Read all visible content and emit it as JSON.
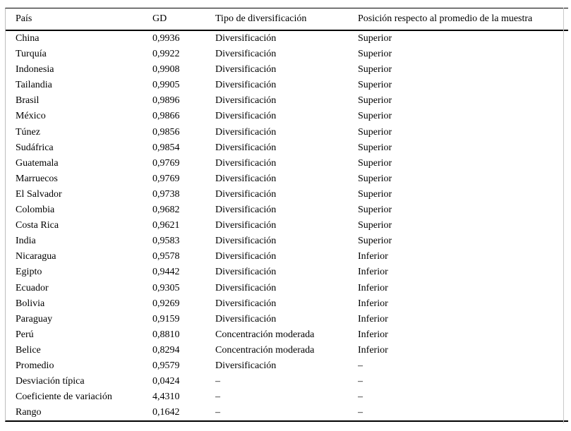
{
  "table": {
    "headers": {
      "country": "País",
      "gd": "GD",
      "type": "Tipo de diversificación",
      "position": "Posición respecto al promedio de la muestra"
    },
    "rows": [
      {
        "country": "China",
        "gd": "0,9936",
        "type": "Diversificación",
        "position": "Superior"
      },
      {
        "country": "Turquía",
        "gd": "0,9922",
        "type": "Diversificación",
        "position": "Superior"
      },
      {
        "country": "Indonesia",
        "gd": "0,9908",
        "type": "Diversificación",
        "position": "Superior"
      },
      {
        "country": "Tailandia",
        "gd": "0,9905",
        "type": "Diversificación",
        "position": "Superior"
      },
      {
        "country": "Brasil",
        "gd": "0,9896",
        "type": "Diversificación",
        "position": "Superior"
      },
      {
        "country": "México",
        "gd": "0,9866",
        "type": "Diversificación",
        "position": "Superior"
      },
      {
        "country": "Túnez",
        "gd": "0,9856",
        "type": "Diversificación",
        "position": "Superior"
      },
      {
        "country": "Sudáfrica",
        "gd": "0,9854",
        "type": "Diversificación",
        "position": "Superior"
      },
      {
        "country": "Guatemala",
        "gd": "0,9769",
        "type": "Diversificación",
        "position": "Superior"
      },
      {
        "country": "Marruecos",
        "gd": "0,9769",
        "type": "Diversificación",
        "position": "Superior"
      },
      {
        "country": "El Salvador",
        "gd": "0,9738",
        "type": "Diversificación",
        "position": "Superior"
      },
      {
        "country": "Colombia",
        "gd": "0,9682",
        "type": "Diversificación",
        "position": "Superior"
      },
      {
        "country": "Costa Rica",
        "gd": "0,9621",
        "type": "Diversificación",
        "position": "Superior"
      },
      {
        "country": "India",
        "gd": "0,9583",
        "type": "Diversificación",
        "position": "Superior"
      },
      {
        "country": "Nicaragua",
        "gd": "0,9578",
        "type": "Diversificación",
        "position": "Inferior"
      },
      {
        "country": "Egipto",
        "gd": "0,9442",
        "type": "Diversificación",
        "position": "Inferior"
      },
      {
        "country": "Ecuador",
        "gd": "0,9305",
        "type": "Diversificación",
        "position": "Inferior"
      },
      {
        "country": "Bolivia",
        "gd": "0,9269",
        "type": "Diversificación",
        "position": "Inferior"
      },
      {
        "country": "Paraguay",
        "gd": "0,9159",
        "type": "Diversificación",
        "position": "Inferior"
      },
      {
        "country": "Perú",
        "gd": "0,8810",
        "type": "Concentración moderada",
        "position": "Inferior"
      },
      {
        "country": "Belice",
        "gd": "0,8294",
        "type": "Concentración moderada",
        "position": "Inferior"
      },
      {
        "country": "Promedio",
        "gd": "0,9579",
        "type": "Diversificación",
        "position": "–"
      },
      {
        "country": "Desviación típica",
        "gd": "0,0424",
        "type": "–",
        "position": "–"
      },
      {
        "country": "Coeficiente de variación",
        "gd": "4,4310",
        "type": "–",
        "position": "–"
      },
      {
        "country": "Rango",
        "gd": "0,1642",
        "type": "–",
        "position": "–"
      }
    ]
  },
  "colors": {
    "rule": "#000000",
    "side_line": "#c9c9c9",
    "text": "#000000",
    "background": "#ffffff"
  }
}
